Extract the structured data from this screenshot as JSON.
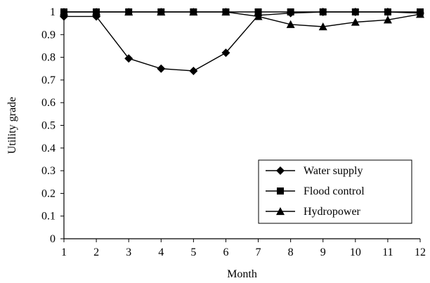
{
  "chart_data": {
    "type": "line",
    "xlabel": "Month",
    "ylabel": "Utility grade",
    "xlim": [
      1,
      12
    ],
    "ylim": [
      0,
      1
    ],
    "x": [
      1,
      2,
      3,
      4,
      5,
      6,
      7,
      8,
      9,
      10,
      11,
      12
    ],
    "xticks": [
      "1",
      "2",
      "3",
      "4",
      "5",
      "6",
      "7",
      "8",
      "9",
      "10",
      "11",
      "12"
    ],
    "yticks": [
      "0",
      "0.1",
      "0.2",
      "0.3",
      "0.4",
      "0.5",
      "0.6",
      "0.7",
      "0.8",
      "0.9",
      "1"
    ],
    "grid": false,
    "legend_position": "bottom-right",
    "series": [
      {
        "name": "Water supply",
        "marker": "diamond",
        "color": "#000000",
        "values": [
          0.98,
          0.98,
          0.795,
          0.75,
          0.74,
          0.82,
          0.985,
          0.995,
          1.0,
          1.0,
          1.0,
          0.995
        ]
      },
      {
        "name": "Flood control",
        "marker": "square",
        "color": "#000000",
        "values": [
          1.0,
          1.0,
          1.0,
          1.0,
          1.0,
          1.0,
          1.0,
          1.0,
          1.0,
          1.0,
          1.0,
          1.0
        ]
      },
      {
        "name": "Hydropower",
        "marker": "triangle",
        "color": "#000000",
        "values": [
          1.0,
          1.0,
          1.0,
          1.0,
          1.0,
          1.0,
          0.98,
          0.945,
          0.935,
          0.955,
          0.965,
          0.99
        ]
      }
    ]
  }
}
